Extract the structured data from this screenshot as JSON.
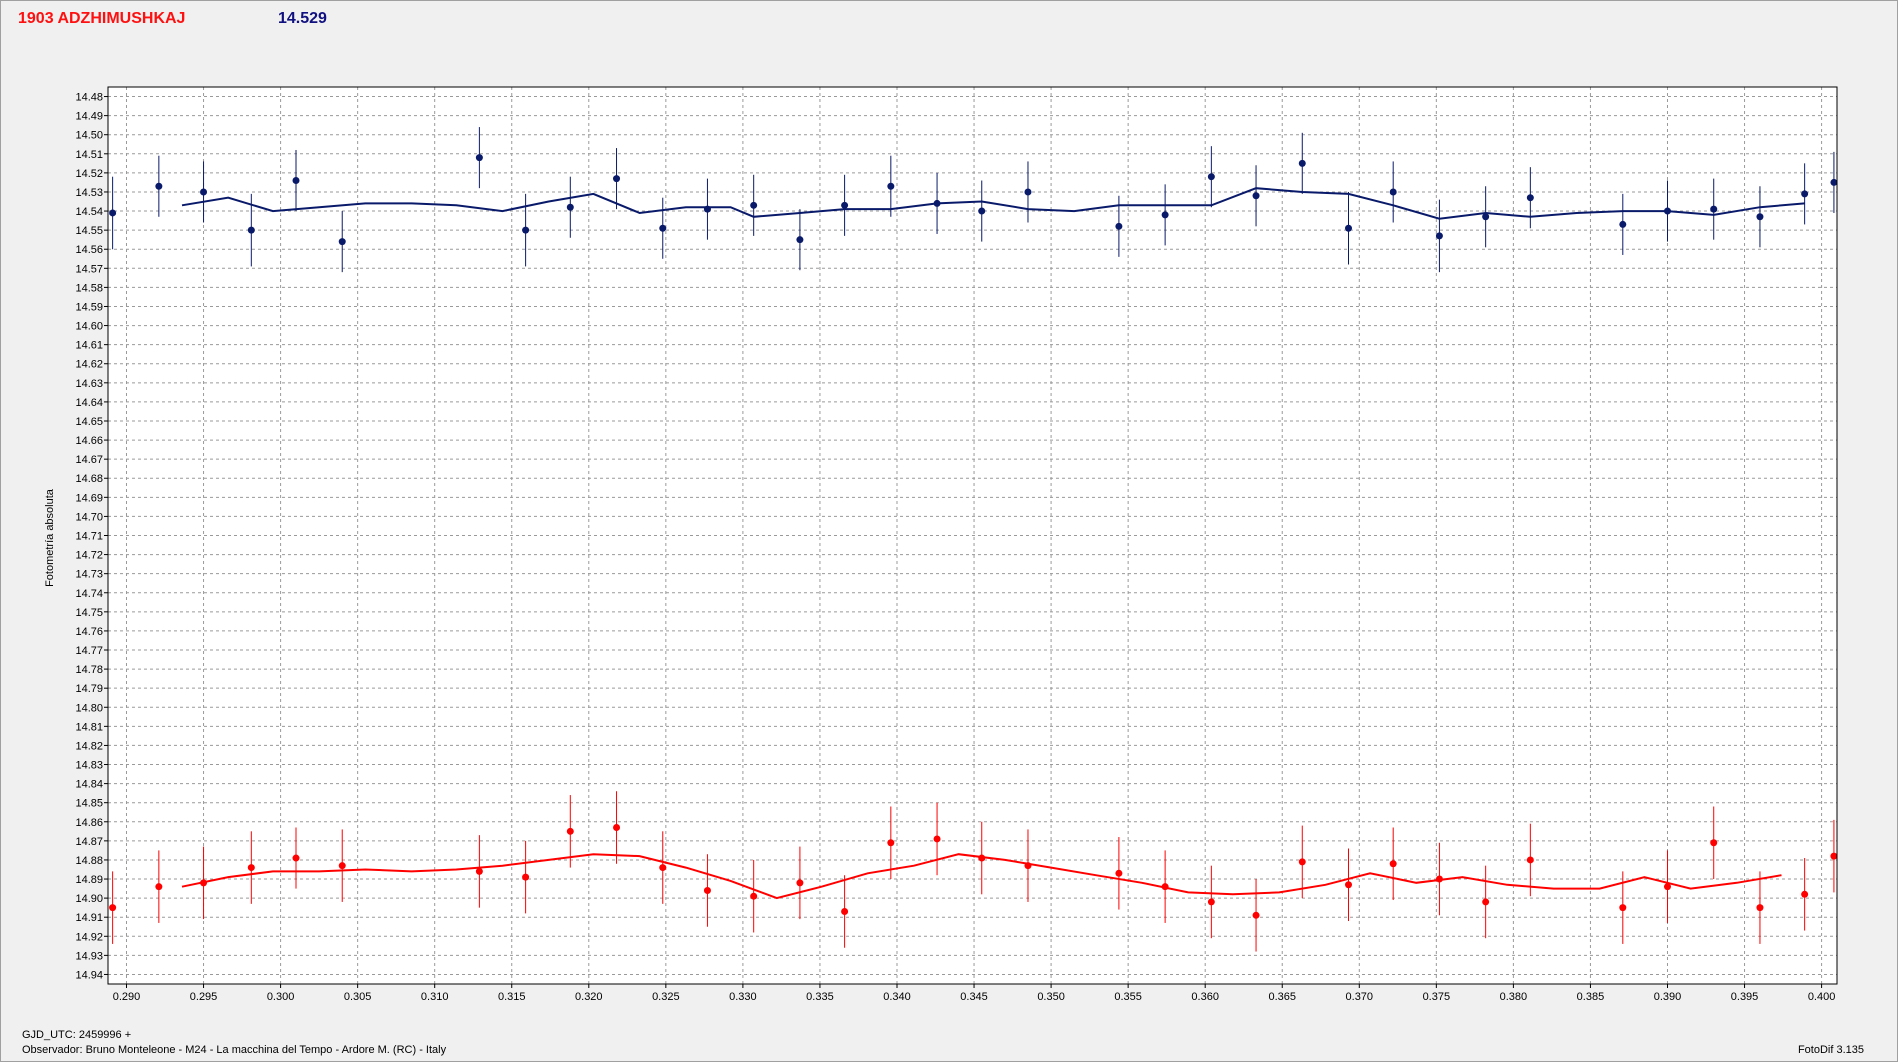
{
  "header": {
    "object": "1903 ADZHIMUSHKAJ",
    "magnitude": "14.529"
  },
  "footer": {
    "gjd": "GJD_UTC: 2459996 +",
    "observer": "Observador: Bruno Monteleone - M24 - La macchina del Tempo - Ardore M. (RC) - Italy",
    "version": "FotoDif 3.135"
  },
  "colors": {
    "title_object": "#ff1010",
    "title_magnitude": "#101080",
    "series_top": "#0a1a6a",
    "series_bottom": "#ff0000"
  },
  "chart_data": {
    "type": "scatter",
    "xlabel": "",
    "ylabel": "Fotometría absoluta",
    "xlim": [
      0.2888,
      0.401
    ],
    "ylim": [
      14.475,
      14.945
    ],
    "y_inverted": true,
    "grid": true,
    "x_ticks": [
      0.29,
      0.295,
      0.3,
      0.305,
      0.31,
      0.315,
      0.32,
      0.325,
      0.33,
      0.335,
      0.34,
      0.345,
      0.35,
      0.355,
      0.36,
      0.365,
      0.37,
      0.375,
      0.38,
      0.385,
      0.39,
      0.395,
      0.4
    ],
    "x_tick_labels": [
      "0.290",
      "0.295",
      "0.300",
      "0.305",
      "0.310",
      "0.315",
      "0.320",
      "0.325",
      "0.330",
      "0.335",
      "0.340",
      "0.345",
      "0.350",
      "0.355",
      "0.360",
      "0.365",
      "0.370",
      "0.375",
      "0.380",
      "0.385",
      "0.390",
      "0.395",
      "0.400"
    ],
    "y_ticks": [
      14.48,
      14.49,
      14.5,
      14.51,
      14.52,
      14.53,
      14.54,
      14.55,
      14.56,
      14.57,
      14.58,
      14.59,
      14.6,
      14.61,
      14.62,
      14.63,
      14.64,
      14.65,
      14.66,
      14.67,
      14.68,
      14.69,
      14.7,
      14.71,
      14.72,
      14.73,
      14.74,
      14.75,
      14.76,
      14.77,
      14.78,
      14.79,
      14.8,
      14.81,
      14.82,
      14.83,
      14.84,
      14.85,
      14.86,
      14.87,
      14.88,
      14.89,
      14.9,
      14.91,
      14.92,
      14.93,
      14.94
    ],
    "y_tick_labels": [
      "14.48",
      "14.49",
      "14.50",
      "14.51",
      "14.52",
      "14.53",
      "14.54",
      "14.55",
      "14.56",
      "14.57",
      "14.58",
      "14.59",
      "14.60",
      "14.61",
      "14.62",
      "14.63",
      "14.64",
      "14.65",
      "14.66",
      "14.67",
      "14.68",
      "14.69",
      "14.70",
      "14.71",
      "14.72",
      "14.73",
      "14.74",
      "14.75",
      "14.76",
      "14.77",
      "14.78",
      "14.79",
      "14.80",
      "14.81",
      "14.82",
      "14.83",
      "14.84",
      "14.85",
      "14.86",
      "14.87",
      "14.88",
      "14.89",
      "14.90",
      "14.91",
      "14.92",
      "14.93",
      "14.94"
    ],
    "series": [
      {
        "color": "#0a1a6a",
        "points": [
          [
            0.2891,
            14.541,
            0.019
          ],
          [
            0.2921,
            14.527,
            0.016
          ],
          [
            0.295,
            14.53,
            0.016
          ],
          [
            0.2981,
            14.55,
            0.019
          ],
          [
            0.301,
            14.524,
            0.016
          ],
          [
            0.304,
            14.556,
            0.016
          ],
          [
            0.3129,
            14.512,
            0.016
          ],
          [
            0.3159,
            14.55,
            0.019
          ],
          [
            0.3188,
            14.538,
            0.016
          ],
          [
            0.3218,
            14.523,
            0.016
          ],
          [
            0.3248,
            14.549,
            0.016
          ],
          [
            0.3277,
            14.539,
            0.016
          ],
          [
            0.3307,
            14.537,
            0.016
          ],
          [
            0.3337,
            14.555,
            0.016
          ],
          [
            0.3366,
            14.537,
            0.016
          ],
          [
            0.3396,
            14.527,
            0.016
          ],
          [
            0.3426,
            14.536,
            0.016
          ],
          [
            0.3455,
            14.54,
            0.016
          ],
          [
            0.3485,
            14.53,
            0.016
          ],
          [
            0.3544,
            14.548,
            0.016
          ],
          [
            0.3574,
            14.542,
            0.016
          ],
          [
            0.3604,
            14.522,
            0.016
          ],
          [
            0.3633,
            14.532,
            0.016
          ],
          [
            0.3663,
            14.515,
            0.016
          ],
          [
            0.3693,
            14.549,
            0.019
          ],
          [
            0.3722,
            14.53,
            0.016
          ],
          [
            0.3752,
            14.553,
            0.019
          ],
          [
            0.3782,
            14.543,
            0.016
          ],
          [
            0.3811,
            14.533,
            0.016
          ],
          [
            0.3871,
            14.547,
            0.016
          ],
          [
            0.39,
            14.54,
            0.016
          ],
          [
            0.393,
            14.539,
            0.016
          ],
          [
            0.396,
            14.543,
            0.016
          ],
          [
            0.3989,
            14.531,
            0.016
          ],
          [
            0.4008,
            14.525,
            0.016
          ]
        ],
        "fit": [
          [
            0.2936,
            14.537
          ],
          [
            0.2966,
            14.533
          ],
          [
            0.2995,
            14.54
          ],
          [
            0.3025,
            14.538
          ],
          [
            0.3055,
            14.536
          ],
          [
            0.3085,
            14.536
          ],
          [
            0.3114,
            14.537
          ],
          [
            0.3144,
            14.54
          ],
          [
            0.3174,
            14.535
          ],
          [
            0.3203,
            14.531
          ],
          [
            0.3233,
            14.541
          ],
          [
            0.3263,
            14.538
          ],
          [
            0.3292,
            14.538
          ],
          [
            0.3307,
            14.543
          ],
          [
            0.3337,
            14.541
          ],
          [
            0.3366,
            14.539
          ],
          [
            0.3396,
            14.539
          ],
          [
            0.3426,
            14.536
          ],
          [
            0.3455,
            14.535
          ],
          [
            0.3485,
            14.539
          ],
          [
            0.3515,
            14.54
          ],
          [
            0.3544,
            14.537
          ],
          [
            0.3574,
            14.537
          ],
          [
            0.3604,
            14.537
          ],
          [
            0.3633,
            14.528
          ],
          [
            0.3663,
            14.53
          ],
          [
            0.3693,
            14.531
          ],
          [
            0.3722,
            14.537
          ],
          [
            0.3752,
            14.544
          ],
          [
            0.3782,
            14.541
          ],
          [
            0.3811,
            14.543
          ],
          [
            0.3841,
            14.541
          ],
          [
            0.3871,
            14.54
          ],
          [
            0.39,
            14.54
          ],
          [
            0.393,
            14.542
          ],
          [
            0.396,
            14.538
          ],
          [
            0.3989,
            14.536
          ]
        ]
      },
      {
        "color": "#ff0000",
        "points": [
          [
            0.2891,
            14.905,
            0.019
          ],
          [
            0.2921,
            14.894,
            0.019
          ],
          [
            0.295,
            14.892,
            0.019
          ],
          [
            0.2981,
            14.884,
            0.019
          ],
          [
            0.301,
            14.879,
            0.016
          ],
          [
            0.304,
            14.883,
            0.019
          ],
          [
            0.3129,
            14.886,
            0.019
          ],
          [
            0.3159,
            14.889,
            0.019
          ],
          [
            0.3188,
            14.865,
            0.019
          ],
          [
            0.3218,
            14.863,
            0.019
          ],
          [
            0.3248,
            14.884,
            0.019
          ],
          [
            0.3277,
            14.896,
            0.019
          ],
          [
            0.3307,
            14.899,
            0.019
          ],
          [
            0.3337,
            14.892,
            0.019
          ],
          [
            0.3366,
            14.907,
            0.019
          ],
          [
            0.3396,
            14.871,
            0.019
          ],
          [
            0.3426,
            14.869,
            0.019
          ],
          [
            0.3455,
            14.879,
            0.019
          ],
          [
            0.3485,
            14.883,
            0.019
          ],
          [
            0.3544,
            14.887,
            0.019
          ],
          [
            0.3574,
            14.894,
            0.019
          ],
          [
            0.3604,
            14.902,
            0.019
          ],
          [
            0.3633,
            14.909,
            0.019
          ],
          [
            0.3663,
            14.881,
            0.019
          ],
          [
            0.3693,
            14.893,
            0.019
          ],
          [
            0.3722,
            14.882,
            0.019
          ],
          [
            0.3752,
            14.89,
            0.019
          ],
          [
            0.3782,
            14.902,
            0.019
          ],
          [
            0.3811,
            14.88,
            0.019
          ],
          [
            0.3871,
            14.905,
            0.019
          ],
          [
            0.39,
            14.894,
            0.019
          ],
          [
            0.393,
            14.871,
            0.019
          ],
          [
            0.396,
            14.905,
            0.019
          ],
          [
            0.3989,
            14.898,
            0.019
          ],
          [
            0.4008,
            14.878,
            0.019
          ]
        ],
        "fit": [
          [
            0.2936,
            14.894
          ],
          [
            0.2966,
            14.889
          ],
          [
            0.2995,
            14.886
          ],
          [
            0.3025,
            14.886
          ],
          [
            0.3055,
            14.885
          ],
          [
            0.3085,
            14.886
          ],
          [
            0.3114,
            14.885
          ],
          [
            0.3144,
            14.883
          ],
          [
            0.3174,
            14.88
          ],
          [
            0.3203,
            14.877
          ],
          [
            0.3233,
            14.878
          ],
          [
            0.3263,
            14.884
          ],
          [
            0.3292,
            14.891
          ],
          [
            0.3322,
            14.9
          ],
          [
            0.3351,
            14.894
          ],
          [
            0.3381,
            14.887
          ],
          [
            0.3411,
            14.883
          ],
          [
            0.344,
            14.877
          ],
          [
            0.347,
            14.88
          ],
          [
            0.35,
            14.884
          ],
          [
            0.3529,
            14.888
          ],
          [
            0.3559,
            14.892
          ],
          [
            0.3589,
            14.897
          ],
          [
            0.3618,
            14.898
          ],
          [
            0.3648,
            14.897
          ],
          [
            0.3678,
            14.893
          ],
          [
            0.3707,
            14.887
          ],
          [
            0.3737,
            14.892
          ],
          [
            0.3767,
            14.889
          ],
          [
            0.3796,
            14.893
          ],
          [
            0.3826,
            14.895
          ],
          [
            0.3856,
            14.895
          ],
          [
            0.3885,
            14.889
          ],
          [
            0.3915,
            14.895
          ],
          [
            0.3945,
            14.892
          ],
          [
            0.3974,
            14.888
          ]
        ]
      }
    ]
  }
}
